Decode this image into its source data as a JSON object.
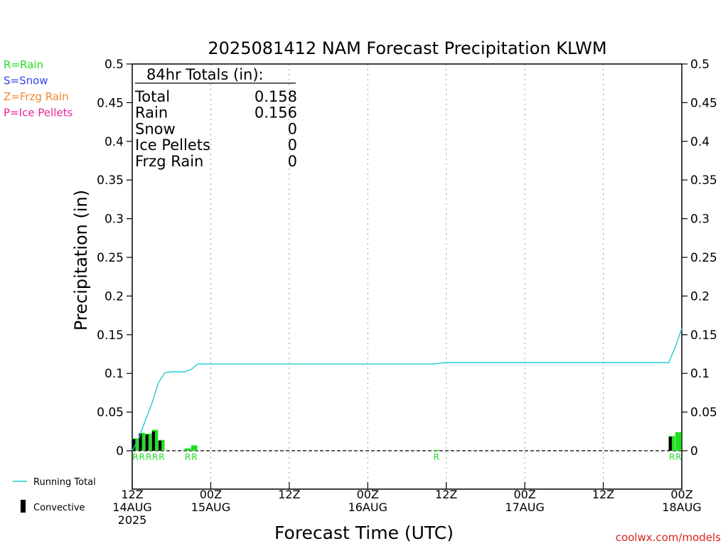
{
  "chart_data": {
    "type": "bar",
    "title": "2025081412 NAM Forecast Precipitation KLWM",
    "xlabel": "Forecast Time (UTC)",
    "ylabel": "Precipitation (in)",
    "ylim": [
      0,
      0.5
    ],
    "xlim": [
      0,
      84
    ],
    "yticks": [
      "0",
      "0.05",
      "0.1",
      "0.15",
      "0.2",
      "0.25",
      "0.3",
      "0.35",
      "0.4",
      "0.45",
      "0.5"
    ],
    "xticks": [
      {
        "hour": 0,
        "lines": [
          "12Z",
          "14AUG",
          "2025"
        ]
      },
      {
        "hour": 12,
        "lines": [
          "00Z",
          "15AUG"
        ]
      },
      {
        "hour": 24,
        "lines": [
          "12Z"
        ]
      },
      {
        "hour": 36,
        "lines": [
          "00Z",
          "16AUG"
        ]
      },
      {
        "hour": 48,
        "lines": [
          "12Z"
        ]
      },
      {
        "hour": 60,
        "lines": [
          "00Z",
          "17AUG"
        ]
      },
      {
        "hour": 72,
        "lines": [
          "12Z"
        ]
      },
      {
        "hour": 84,
        "lines": [
          "00Z",
          "18AUG"
        ]
      }
    ],
    "legend_types": [
      {
        "label": "R=Rain",
        "color": "#22dd22"
      },
      {
        "label": "S=Snow",
        "color": "#3344ee"
      },
      {
        "label": "Z=Frzg Rain",
        "color": "#ee8833"
      },
      {
        "label": "P=Ice Pellets",
        "color": "#ee2299"
      }
    ],
    "legend_series": [
      {
        "label": "Running Total",
        "color": "#22cccc"
      },
      {
        "label": "Convective",
        "color": "#000000"
      }
    ],
    "totals": {
      "heading": "84hr Totals (in):",
      "rows": [
        {
          "label": "Total",
          "value": "0.158"
        },
        {
          "label": "Rain",
          "value": "0.156"
        },
        {
          "label": "Snow",
          "value": "0"
        },
        {
          "label": "Ice Pellets",
          "value": "0"
        },
        {
          "label": "Frzg Rain",
          "value": "0"
        }
      ]
    },
    "bars": [
      {
        "hour": 1,
        "total": 0.016,
        "convective": 0.015,
        "type": "R"
      },
      {
        "hour": 2,
        "total": 0.023,
        "convective": 0.022,
        "type": "R"
      },
      {
        "hour": 3,
        "total": 0.022,
        "convective": 0.021,
        "type": "R"
      },
      {
        "hour": 4,
        "total": 0.027,
        "convective": 0.025,
        "type": "R"
      },
      {
        "hour": 5,
        "total": 0.014,
        "convective": 0.013,
        "type": "R"
      },
      {
        "hour": 9,
        "total": 0.003,
        "convective": 0.0,
        "type": "R"
      },
      {
        "hour": 10,
        "total": 0.007,
        "convective": 0.0,
        "type": "R"
      },
      {
        "hour": 47,
        "total": 0.001,
        "convective": 0.0,
        "type": "R"
      },
      {
        "hour": 83,
        "total": 0.019,
        "convective": 0.018,
        "type": "R"
      },
      {
        "hour": 84,
        "total": 0.024,
        "convective": 0.0,
        "type": "R"
      }
    ],
    "running_total": {
      "x": [
        0,
        1,
        2,
        3,
        4,
        5,
        6,
        7,
        8,
        9,
        10,
        11,
        46,
        47,
        48,
        82,
        83,
        84
      ],
      "y": [
        0,
        0.016,
        0.039,
        0.061,
        0.088,
        0.101,
        0.102,
        0.102,
        0.102,
        0.105,
        0.112,
        0.112,
        0.112,
        0.113,
        0.114,
        0.114,
        0.134,
        0.158
      ]
    }
  },
  "footer": {
    "credit": "coolwx.com/models"
  }
}
